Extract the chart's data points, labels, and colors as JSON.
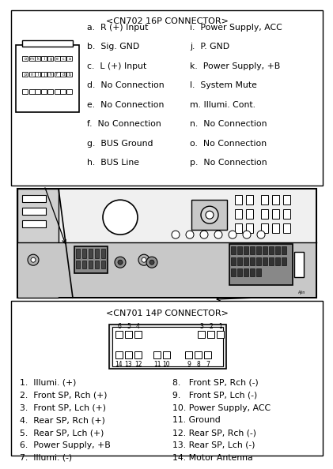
{
  "bg_color": "#ffffff",
  "cn702_title": "<CN702 16P CONNECTOR>",
  "cn702_left_labels": [
    "a.  R (+) Input",
    "b.  Sig. GND",
    "c.  L (+) Input",
    "d.  No Connection",
    "e.  No Connection",
    "f.  No Connection",
    "g.  BUS Ground",
    "h.  BUS Line"
  ],
  "cn702_right_labels": [
    "i.  Power Supply, ACC",
    "j.  P. GND",
    "k.  Power Supply, +B",
    "l.  System Mute",
    "m. Illumi. Cont.",
    "n.  No Connection",
    "o.  No Connection",
    "p.  No Connection"
  ],
  "cn702_row1": [
    "o",
    "m",
    "k",
    "i",
    "g",
    "e",
    "c",
    "a"
  ],
  "cn702_row2": [
    "p",
    "n",
    "l",
    "j",
    "h",
    "f",
    "d",
    "b"
  ],
  "cn701_title": "<CN701 14P CONNECTOR>",
  "cn701_left_labels": [
    "1.  Illumi. (+)",
    "2.  Front SP, Rch (+)",
    "3.  Front SP, Lch (+)",
    "4.  Rear SP, Rch (+)",
    "5.  Rear SP, Lch (+)",
    "6.  Power Supply, +B",
    "7.  Illumi. (-)"
  ],
  "cn701_right_labels": [
    "8.   Front SP, Rch (-)",
    "9.   Front SP, Lch (-)",
    "10. Power Supply, ACC",
    "11. Ground",
    "12. Rear SP, Rch (-)",
    "13. Rear SP, Lch (-)",
    "14. Motor Antenna"
  ]
}
